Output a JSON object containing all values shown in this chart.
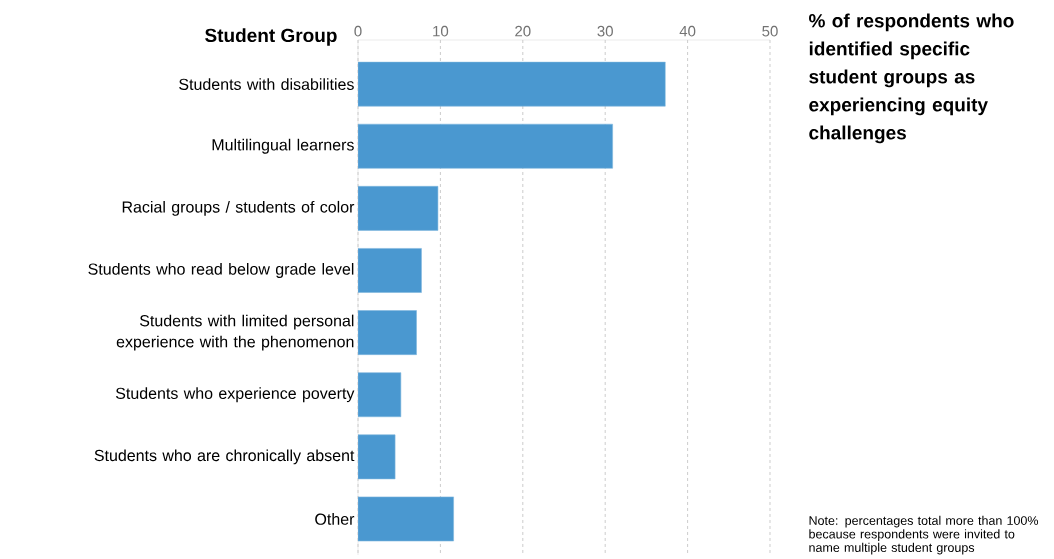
{
  "chart_data": {
    "type": "bar",
    "orientation": "horizontal",
    "title": "% of respondents who identified specific student groups as experiencing equity challenges",
    "ylabel": "Student Group",
    "categories": [
      "Students with disabilities",
      "Multilingual learners",
      "Racial groups / students of color",
      "Students who read below grade level",
      "Students with limited personal experience with the phenomenon",
      "Students who experience poverty",
      "Students who are chronically absent",
      "Other"
    ],
    "values": [
      37.3,
      30.9,
      9.7,
      7.7,
      7.1,
      5.2,
      4.5,
      11.6
    ],
    "color": "#4a98d0",
    "xlim": [
      0,
      50
    ],
    "xticks": [
      0,
      10,
      20,
      30,
      40,
      50
    ],
    "grid": "x",
    "annotations": [
      "Note: percentages total more than 100% because respondents were invited to name multiple student groups"
    ]
  }
}
